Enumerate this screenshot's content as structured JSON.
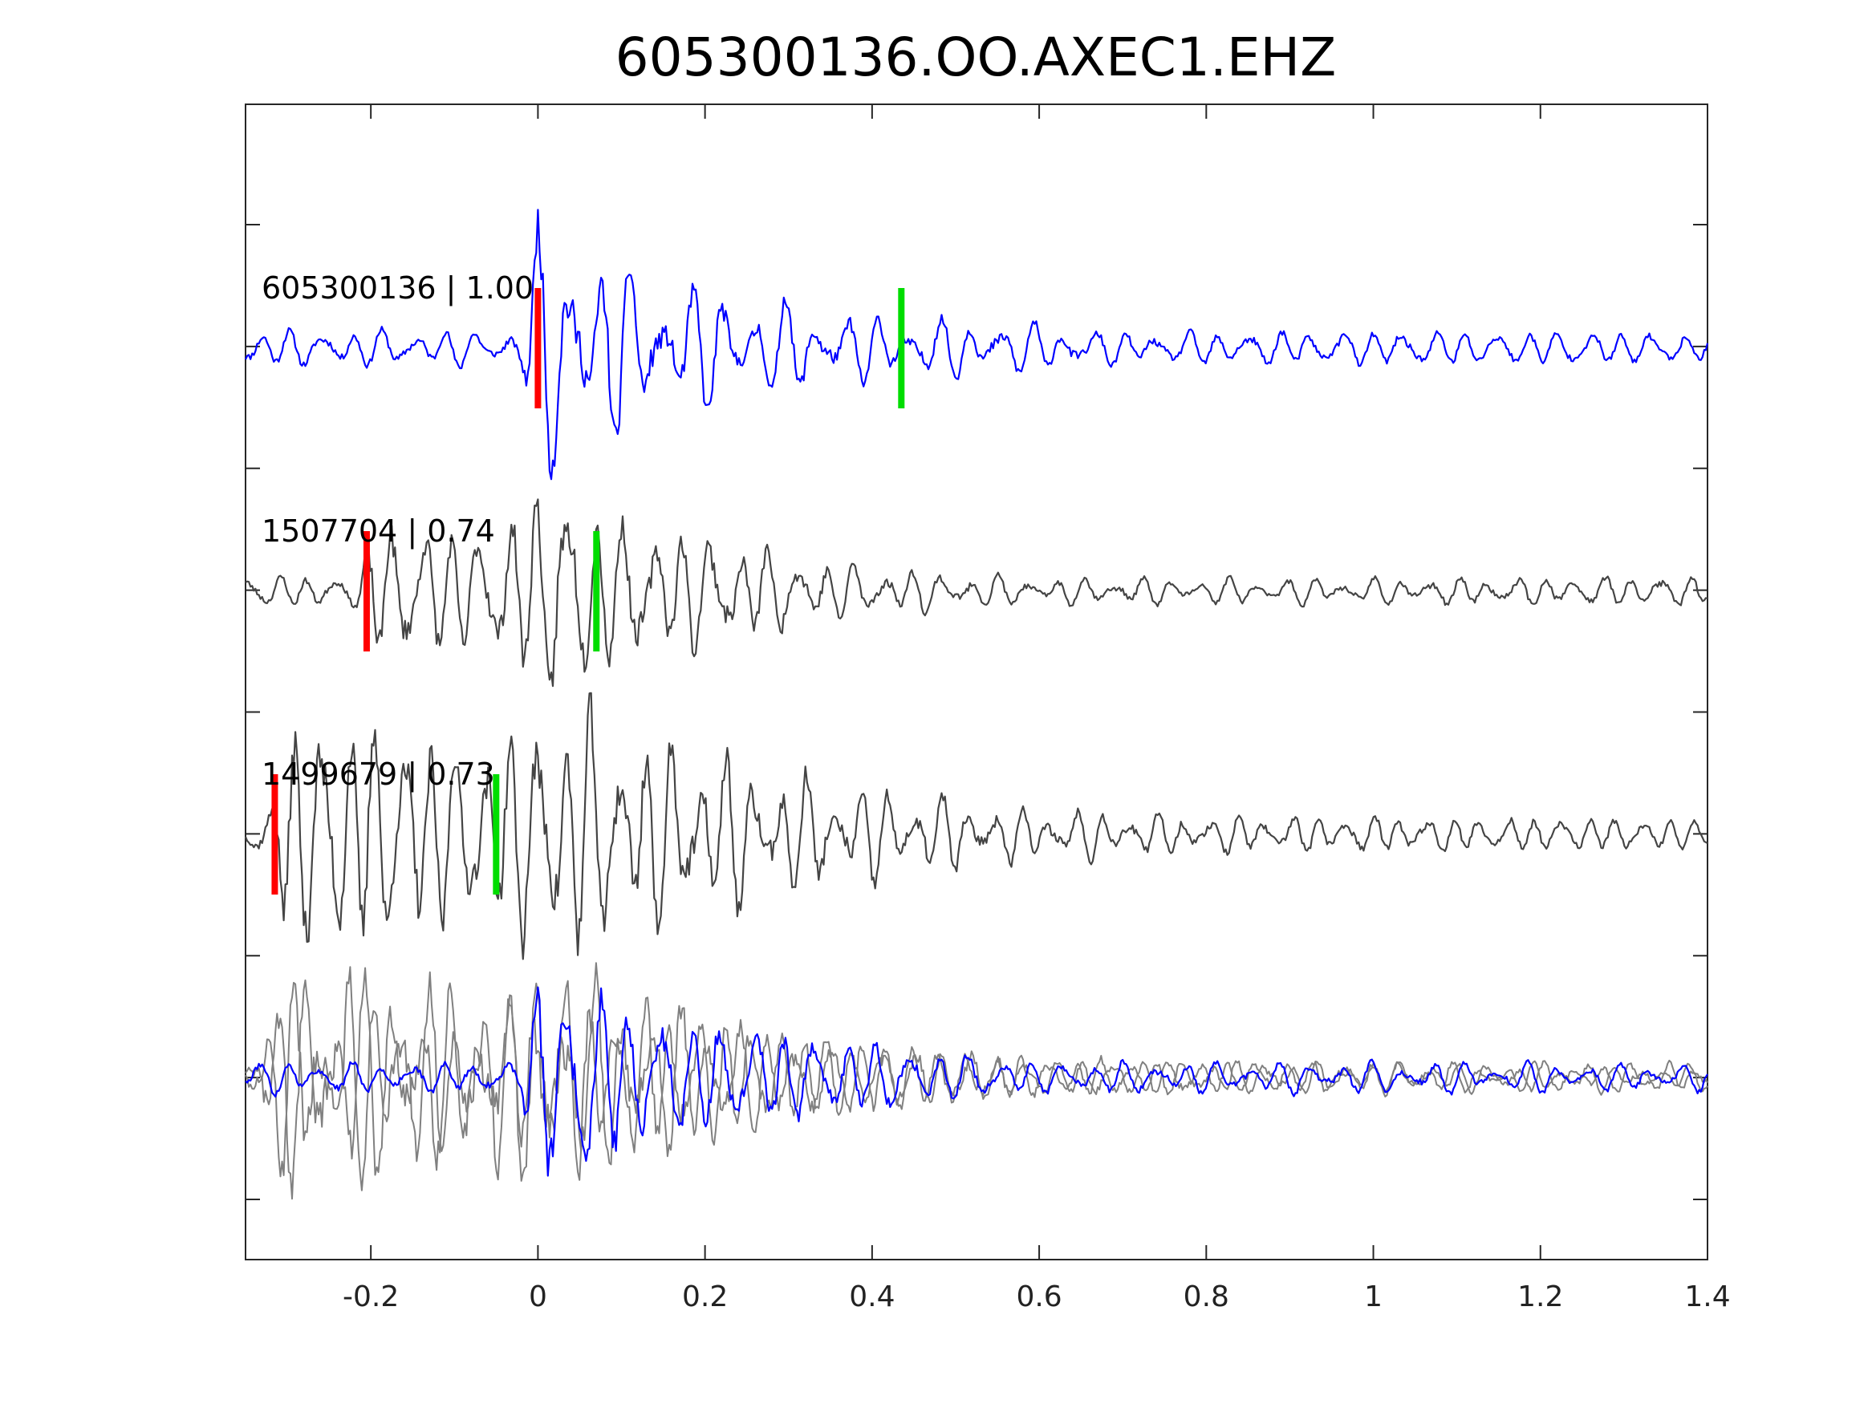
{
  "chart_data": {
    "type": "line",
    "title": "605300136.OO.AXEC1.EHZ",
    "xlabel": "",
    "ylabel": "",
    "xlim": [
      -0.35,
      1.4
    ],
    "x_ticks": [
      {
        "value": -0.2,
        "label": "-0.2"
      },
      {
        "value": 0,
        "label": "0"
      },
      {
        "value": 0.2,
        "label": "0.2"
      },
      {
        "value": 0.4,
        "label": "0.4"
      },
      {
        "value": 0.6,
        "label": "0.6"
      },
      {
        "value": 0.8,
        "label": "0.8"
      },
      {
        "value": 1,
        "label": "1"
      },
      {
        "value": 1.2,
        "label": "1.2"
      },
      {
        "value": 1.4,
        "label": "1.4"
      }
    ],
    "y_tick_count": 9,
    "grid": false,
    "colors": {
      "master": "#0000ff",
      "similar": "#444444",
      "overlay": "#808080",
      "p_pick": "#ff0000",
      "s_pick": "#00dd00"
    },
    "series": [
      {
        "label": "605300136 | 1.00",
        "event_id": "605300136",
        "correlation": 1.0,
        "color": "#0000ff",
        "p_pick": 0.0,
        "s_pick": 0.435,
        "envelope": [
          [
            -0.35,
            0.14
          ],
          [
            -0.02,
            0.14
          ],
          [
            0.0,
            0.9
          ],
          [
            0.02,
            1.0
          ],
          [
            0.05,
            0.8
          ],
          [
            0.1,
            0.65
          ],
          [
            0.15,
            0.45
          ],
          [
            0.22,
            0.45
          ],
          [
            0.3,
            0.35
          ],
          [
            0.42,
            0.22
          ],
          [
            0.55,
            0.22
          ],
          [
            0.7,
            0.12
          ],
          [
            1.0,
            0.14
          ],
          [
            1.4,
            0.12
          ]
        ]
      },
      {
        "label": "1507704 | 0.74",
        "event_id": "1507704",
        "correlation": 0.74,
        "color": "#444444",
        "p_pick": -0.205,
        "s_pick": 0.07,
        "envelope": [
          [
            -0.35,
            0.12
          ],
          [
            -0.22,
            0.12
          ],
          [
            -0.19,
            0.6
          ],
          [
            -0.15,
            0.5
          ],
          [
            -0.05,
            0.5
          ],
          [
            0.0,
            0.8
          ],
          [
            0.02,
            1.0
          ],
          [
            0.05,
            0.75
          ],
          [
            0.1,
            0.55
          ],
          [
            0.2,
            0.45
          ],
          [
            0.3,
            0.3
          ],
          [
            0.4,
            0.18
          ],
          [
            0.6,
            0.1
          ],
          [
            1.0,
            0.1
          ],
          [
            1.4,
            0.12
          ]
        ]
      },
      {
        "label": "1499679 | 0.73",
        "event_id": "1499679",
        "correlation": 0.73,
        "color": "#444444",
        "p_pick": -0.315,
        "s_pick": -0.05,
        "envelope": [
          [
            -0.35,
            0.15
          ],
          [
            -0.32,
            0.2
          ],
          [
            -0.3,
            0.9
          ],
          [
            -0.2,
            0.95
          ],
          [
            -0.1,
            0.7
          ],
          [
            -0.05,
            0.7
          ],
          [
            0.0,
            0.9
          ],
          [
            0.02,
            1.0
          ],
          [
            0.1,
            0.85
          ],
          [
            0.2,
            0.65
          ],
          [
            0.3,
            0.45
          ],
          [
            0.4,
            0.35
          ],
          [
            0.55,
            0.22
          ],
          [
            0.8,
            0.14
          ],
          [
            1.0,
            0.14
          ],
          [
            1.4,
            0.12
          ]
        ]
      },
      {
        "label": "",
        "overlay": true,
        "envelope_master": [
          [
            -0.35,
            0.12
          ],
          [
            -0.02,
            0.12
          ],
          [
            0.0,
            0.9
          ],
          [
            0.02,
            1.0
          ],
          [
            0.05,
            0.8
          ],
          [
            0.1,
            0.6
          ],
          [
            0.2,
            0.45
          ],
          [
            0.3,
            0.35
          ],
          [
            0.45,
            0.22
          ],
          [
            0.6,
            0.12
          ],
          [
            1.0,
            0.12
          ],
          [
            1.4,
            0.1
          ]
        ],
        "envelope_others": [
          [
            -0.35,
            0.2
          ],
          [
            -0.3,
            0.75
          ],
          [
            -0.2,
            0.8
          ],
          [
            -0.1,
            0.6
          ],
          [
            0.0,
            0.75
          ],
          [
            0.02,
            0.8
          ],
          [
            0.1,
            0.65
          ],
          [
            0.2,
            0.5
          ],
          [
            0.3,
            0.35
          ],
          [
            0.45,
            0.25
          ],
          [
            0.6,
            0.15
          ],
          [
            1.0,
            0.12
          ],
          [
            1.4,
            0.1
          ]
        ]
      }
    ]
  }
}
